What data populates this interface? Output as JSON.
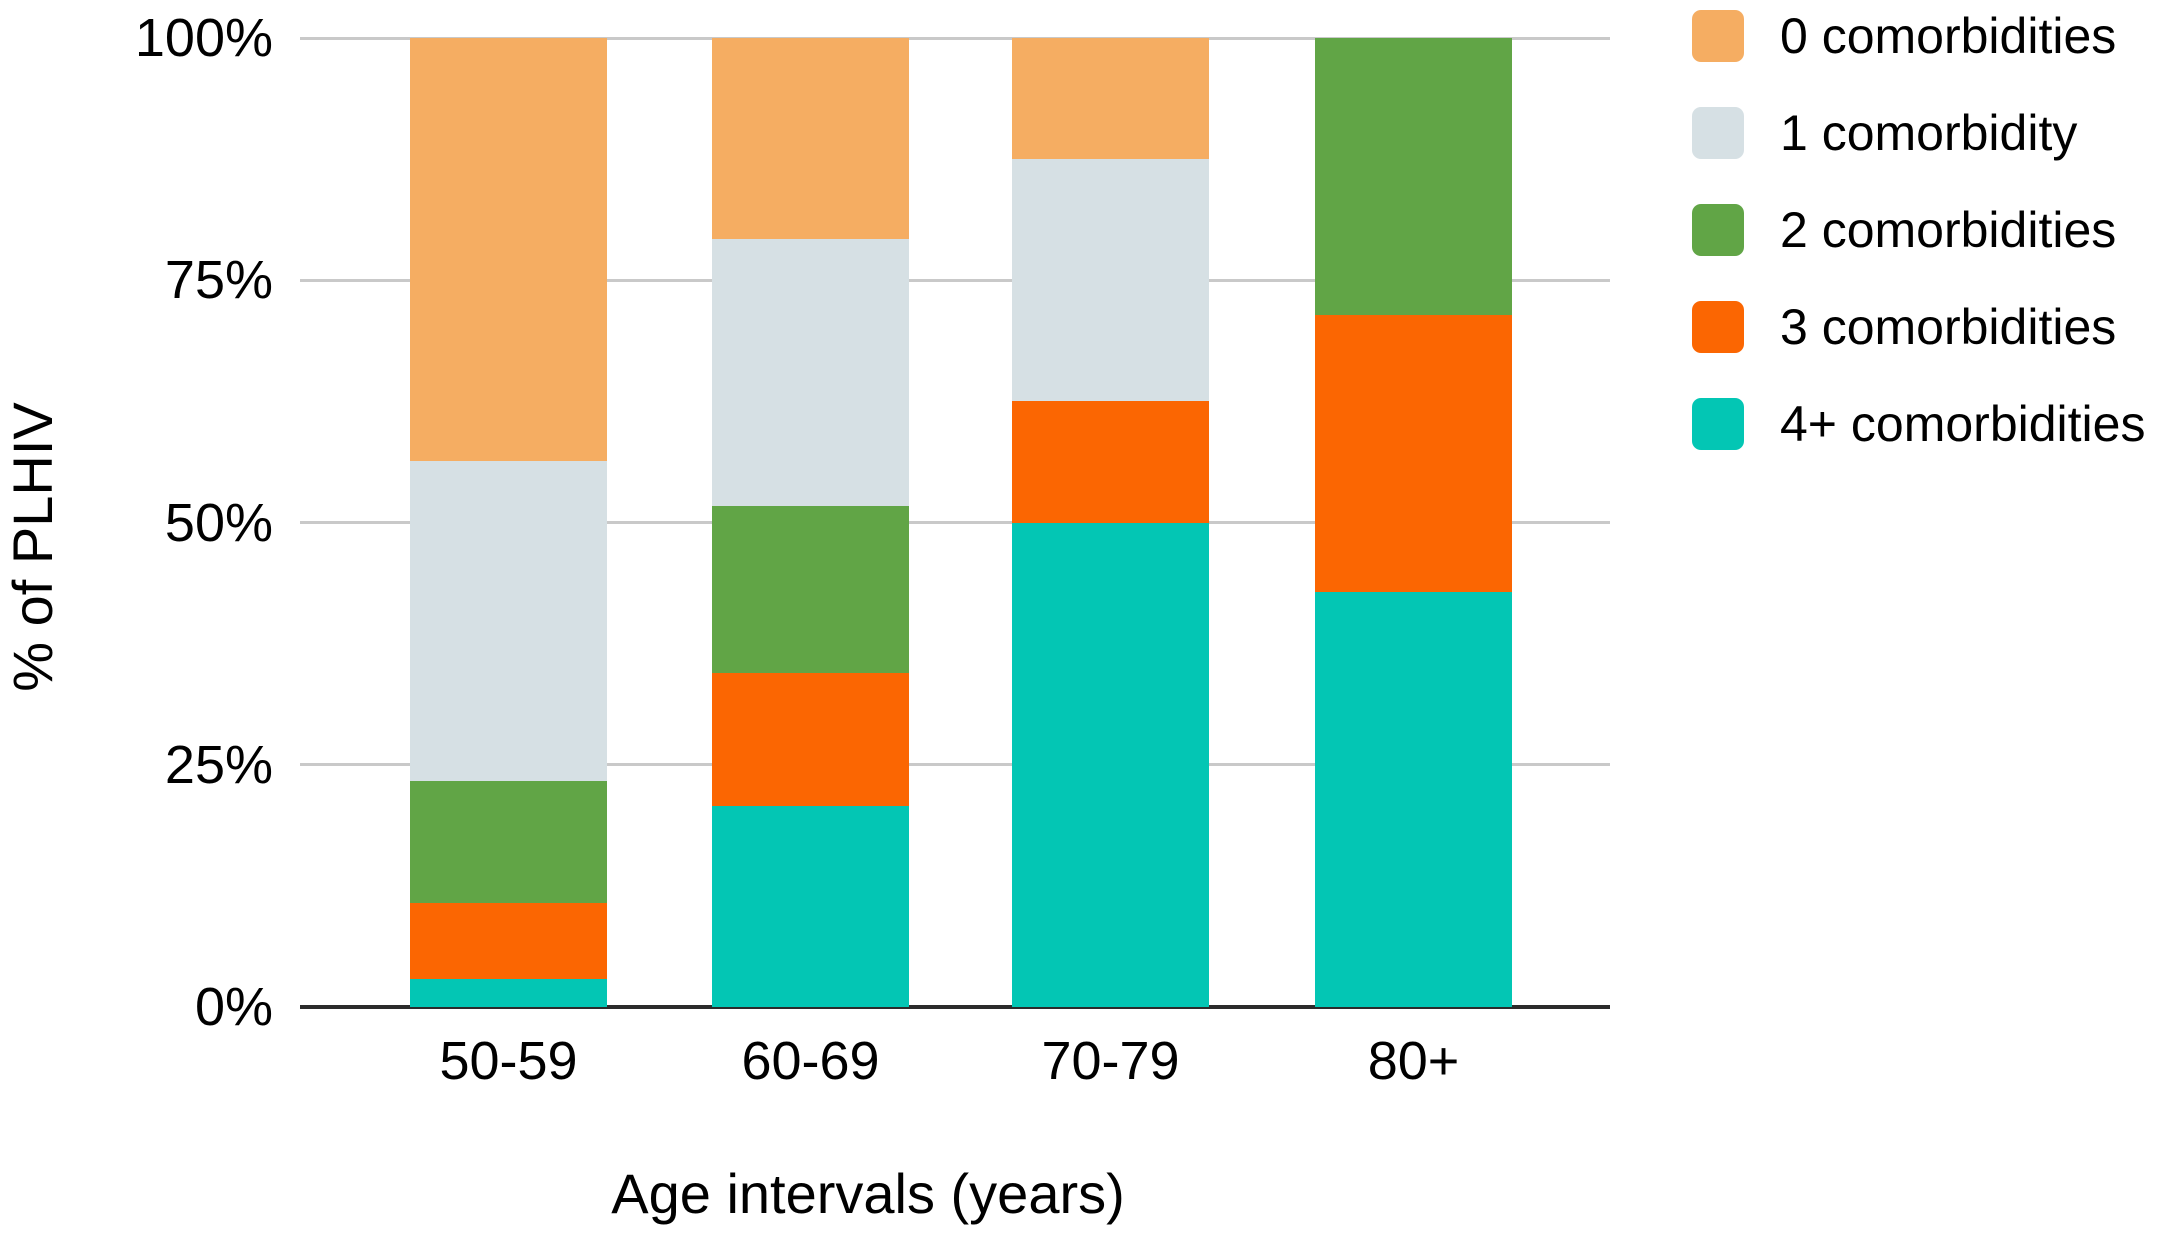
{
  "chart_data": {
    "type": "bar",
    "subtype": "stacked-100-percent",
    "title": "",
    "xlabel": "Age intervals (years)",
    "ylabel": "% of PLHIV",
    "categories": [
      "50-59",
      "60-69",
      "70-79",
      "80+"
    ],
    "y_ticks": [
      {
        "label": "0%",
        "value": 0
      },
      {
        "label": "25%",
        "value": 25
      },
      {
        "label": "50%",
        "value": 50
      },
      {
        "label": "75%",
        "value": 75
      },
      {
        "label": "100%",
        "value": 100
      }
    ],
    "ylim": [
      0,
      100
    ],
    "grid": true,
    "legend_position": "top-right",
    "series": [
      {
        "name": "0 comorbidities",
        "color": "#F5AD62",
        "values": [
          43.7,
          20.7,
          12.5,
          0
        ]
      },
      {
        "name": "1 comorbidity",
        "color": "#D6E0E4",
        "values": [
          33.0,
          27.6,
          25.0,
          0
        ]
      },
      {
        "name": "2 comorbidities",
        "color": "#61A546",
        "values": [
          12.6,
          17.2,
          0,
          28.6
        ]
      },
      {
        "name": "3 comorbidities",
        "color": "#FB6602",
        "values": [
          7.8,
          13.8,
          12.5,
          28.6
        ]
      },
      {
        "name": "4+ comorbidities",
        "color": "#03C6B4",
        "values": [
          2.9,
          20.7,
          50.0,
          42.8
        ]
      }
    ],
    "stack_order_top_to_bottom": [
      "0 comorbidities",
      "1 comorbidity",
      "2 comorbidities",
      "3 comorbidities",
      "4+ comorbidities"
    ]
  },
  "colors": {
    "background": "#FFFFFF",
    "gridline": "#C9C9C9",
    "axis_line": "#2B2B2B",
    "text": "#000000"
  }
}
